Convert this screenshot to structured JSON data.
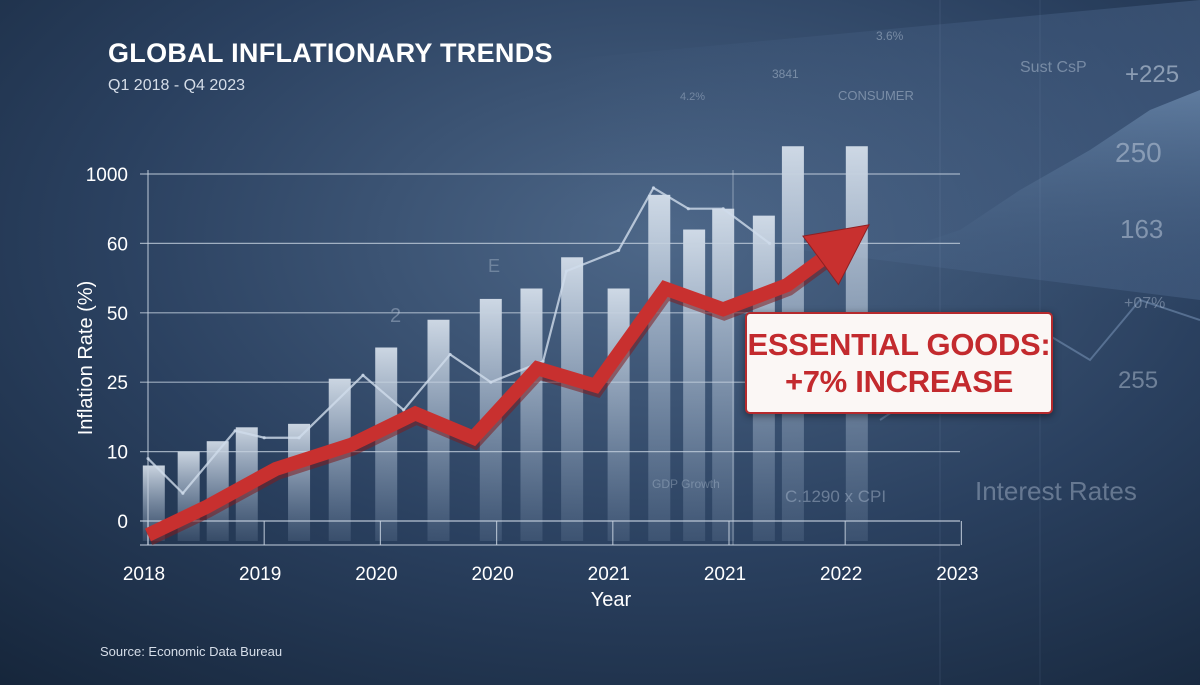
{
  "page": {
    "title": "GLOBAL INFLATIONARY TRENDS",
    "subtitle": "Q1 2018 - Q4 2023",
    "source": "Source: Economic Data Bureau"
  },
  "callout": {
    "line1": "ESSENTIAL GOODS:",
    "line2": "+7% INCREASE"
  },
  "background_texts": [
    "3.6%",
    "Sust CsP",
    "+225",
    "3841",
    "CONSUMER",
    "4.2%",
    "250",
    "163",
    "+07%",
    "255",
    "GDP Growth",
    "C.1290 x CPI",
    "Interest Rates",
    "2",
    "E"
  ],
  "colors": {
    "background": "#1b2d45",
    "accent_red": "#c8302f",
    "grid": "#c6d1df",
    "bar": "#dbe6f2"
  },
  "chart_data": {
    "type": "line",
    "title": "GLOBAL INFLATIONARY TRENDS",
    "subtitle": "Q1 2018 - Q4 2023",
    "xlabel": "Year",
    "ylabel": "Inflation Rate (%)",
    "x_tick_labels": [
      "2018",
      "2019",
      "2020",
      "2020",
      "2021",
      "2021",
      "2022",
      "2023"
    ],
    "y_tick_labels": [
      "0",
      "10",
      "25",
      "50",
      "60",
      "1000"
    ],
    "grid": true,
    "series": [
      {
        "name": "",
        "color": "#c8302f",
        "x": [
          0,
          0.5,
          1.1,
          1.75,
          2.3,
          2.8,
          3.35,
          3.85,
          4.45,
          4.95,
          5.5,
          6.15
        ],
        "y_level": [
          -0.2,
          0.2,
          0.75,
          1.1,
          1.55,
          1.2,
          2.2,
          1.95,
          3.35,
          3.05,
          3.4,
          4.2
        ]
      },
      {
        "name": "",
        "color": "#cfdceb",
        "x": [
          0,
          0.3,
          0.75,
          1.0,
          1.3,
          1.85,
          2.2,
          2.6,
          2.95,
          3.4,
          3.6,
          4.05,
          4.35,
          4.65,
          4.95,
          5.35
        ],
        "y_level": [
          0.9,
          0.4,
          1.3,
          1.2,
          1.2,
          2.1,
          1.6,
          2.4,
          2.0,
          2.3,
          3.6,
          3.9,
          4.8,
          4.5,
          4.5,
          4.0
        ]
      }
    ],
    "bars": [
      {
        "x": 0.05,
        "y_level": 0.8
      },
      {
        "x": 0.35,
        "y_level": 1.0
      },
      {
        "x": 0.6,
        "y_level": 1.15
      },
      {
        "x": 0.85,
        "y_level": 1.35
      },
      {
        "x": 1.3,
        "y_level": 1.4
      },
      {
        "x": 1.65,
        "y_level": 2.05
      },
      {
        "x": 2.05,
        "y_level": 2.5
      },
      {
        "x": 2.5,
        "y_level": 2.9
      },
      {
        "x": 2.95,
        "y_level": 3.2
      },
      {
        "x": 3.3,
        "y_level": 3.35
      },
      {
        "x": 3.65,
        "y_level": 3.8
      },
      {
        "x": 4.05,
        "y_level": 3.35
      },
      {
        "x": 4.4,
        "y_level": 4.7
      },
      {
        "x": 4.7,
        "y_level": 4.2
      },
      {
        "x": 4.95,
        "y_level": 4.5
      },
      {
        "x": 5.3,
        "y_level": 4.4
      },
      {
        "x": 5.55,
        "y_level": 5.4
      },
      {
        "x": 6.1,
        "y_level": 5.4
      }
    ],
    "ylim_levels": [
      0,
      5
    ]
  }
}
